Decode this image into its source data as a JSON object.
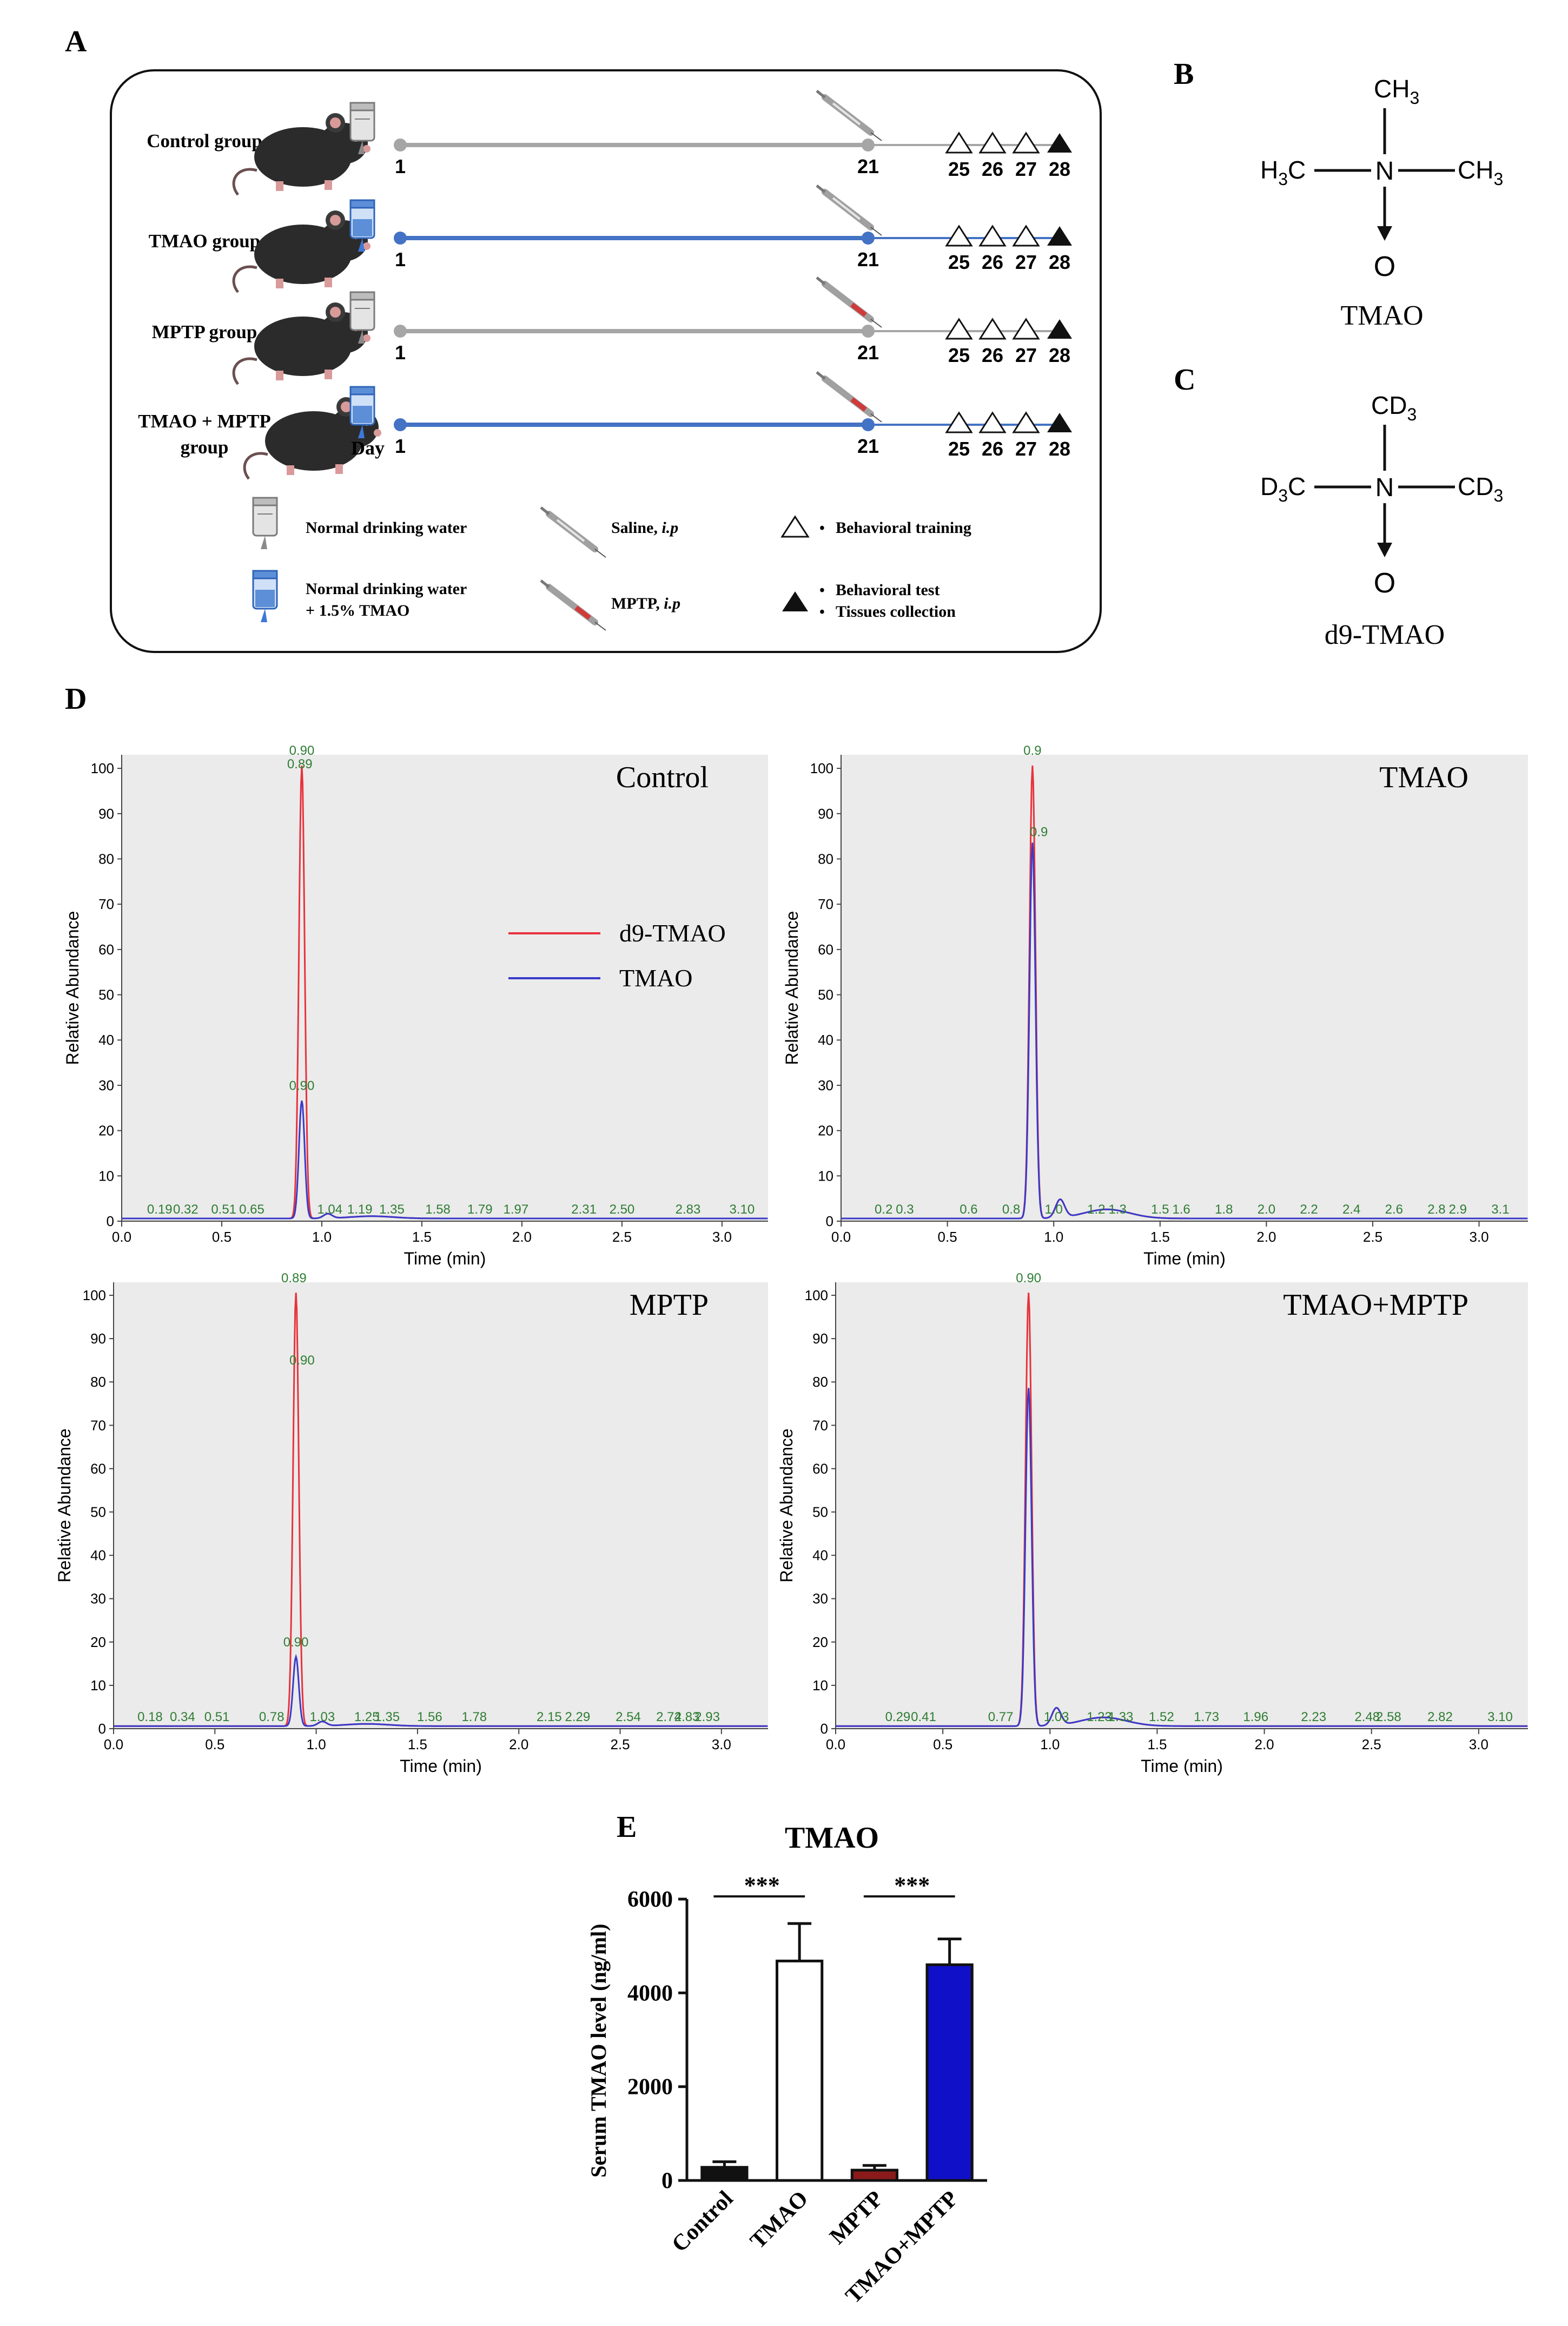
{
  "panel_labels": {
    "a": "A",
    "b": "B",
    "c": "C",
    "d": "D",
    "e": "E"
  },
  "schematic": {
    "groups": [
      {
        "name": "Control group",
        "tmao_water": false,
        "mptp": false
      },
      {
        "name": "TMAO group",
        "tmao_water": true,
        "mptp": false
      },
      {
        "name": "MPTP group",
        "tmao_water": false,
        "mptp": true
      },
      {
        "name_line1": "TMAO + MPTP",
        "name_line2": "group",
        "tmao_water": true,
        "mptp": true
      }
    ],
    "day_start": "1",
    "day_injection": "21",
    "days_training": [
      "25",
      "26",
      "27"
    ],
    "day_test": "28",
    "day_label": "Day",
    "legend": {
      "normal_water": "Normal drinking water",
      "tmao_water_line1": "Normal drinking water",
      "tmao_water_line2": "+ 1.5% TMAO",
      "saline": "Saline, ",
      "saline_route": "i.p",
      "mptp": "MPTP, ",
      "mptp_route": "i.p",
      "training": "Behavioral training",
      "test": "Behavioral test",
      "tissues": "Tissues collection",
      "bullet": "•"
    },
    "colors": {
      "gray_line": "#a6a6a6",
      "blue_line": "#4472c4",
      "syringe_saline": "#b0b0b0",
      "syringe_mptp": "#d03a3a"
    }
  },
  "structures": {
    "tmao": {
      "methyl": "CH",
      "sub": "3",
      "n": "N",
      "o": "O",
      "name": "TMAO",
      "h3c_h": "H",
      "h3c_c": "C"
    },
    "d9": {
      "methyl": "CD",
      "sub": "3",
      "n": "N",
      "o": "O",
      "name": "d9-TMAO",
      "d3c_d": "D",
      "d3c_c": "C"
    }
  },
  "chromatograms": {
    "ylabel": "Relative Abundance",
    "xlabel": "Time (min)",
    "yticks": [
      "0",
      "10",
      "20",
      "30",
      "40",
      "50",
      "60",
      "70",
      "80",
      "90",
      "100"
    ],
    "xticks": [
      "0.0",
      "0.5",
      "1.0",
      "1.5",
      "2.0",
      "2.5",
      "3.0"
    ],
    "legend": {
      "d9": "d9-TMAO",
      "tmao": "TMAO"
    },
    "colors": {
      "d9": "#e8323c",
      "tmao": "#3a3aca",
      "annot": "#2e7d32",
      "bg": "#ebebeb"
    },
    "panels": [
      {
        "title": "Control",
        "d9_peak": 100,
        "tmao_peak": 26,
        "peak_labels": [
          {
            "t": 0.89,
            "y": 100,
            "text": "0.89"
          },
          {
            "t": 0.9,
            "y": 103,
            "text": "0.90"
          },
          {
            "t": 0.9,
            "y": 29,
            "text": "0.90"
          }
        ],
        "baseline_labels": [
          "0.19",
          "0.32",
          "0.51",
          "0.65",
          "1.04",
          "1.19",
          "1.35",
          "1.58",
          "1.79",
          "1.97",
          "2.31",
          "2.50",
          "2.83",
          "3.10"
        ],
        "baseline_times": [
          0.19,
          0.32,
          0.51,
          0.65,
          1.04,
          1.19,
          1.35,
          1.58,
          1.79,
          1.97,
          2.31,
          2.5,
          2.83,
          3.1
        ]
      },
      {
        "title": "TMAO",
        "d9_peak": 100,
        "tmao_peak": 83,
        "peak_labels": [
          {
            "t": 0.9,
            "y": 103,
            "text": "0.9"
          },
          {
            "t": 0.93,
            "y": 85,
            "text": "0.9"
          }
        ],
        "baseline_labels": [
          "0.2",
          "0.3",
          "0.6",
          "0.8",
          "1.0",
          "1.2",
          "1.3",
          "1.5",
          "1.6",
          "1.8",
          "2.0",
          "2.2",
          "2.4",
          "2.6",
          "2.8",
          "2.9",
          "3.1"
        ],
        "baseline_times": [
          0.2,
          0.3,
          0.6,
          0.8,
          1.0,
          1.2,
          1.3,
          1.5,
          1.6,
          1.8,
          2.0,
          2.2,
          2.4,
          2.6,
          2.8,
          2.9,
          3.1
        ]
      },
      {
        "title": "MPTP",
        "d9_peak": 100,
        "tmao_peak": 16,
        "peak_labels": [
          {
            "t": 0.89,
            "y": 103,
            "text": "0.89"
          },
          {
            "t": 0.93,
            "y": 84,
            "text": "0.90"
          },
          {
            "t": 0.9,
            "y": 19,
            "text": "0.90"
          }
        ],
        "baseline_labels": [
          "0.18",
          "0.34",
          "0.51",
          "0.78",
          "1.03",
          "1.25",
          "1.35",
          "1.56",
          "1.78",
          "2.15",
          "2.29",
          "2.54",
          "2.74",
          "2.83",
          "2.93"
        ],
        "baseline_times": [
          0.18,
          0.34,
          0.51,
          0.78,
          1.03,
          1.25,
          1.35,
          1.56,
          1.78,
          2.15,
          2.29,
          2.54,
          2.74,
          2.83,
          2.93
        ]
      },
      {
        "title": "TMAO+MPTP",
        "d9_peak": 100,
        "tmao_peak": 78,
        "peak_labels": [
          {
            "t": 0.9,
            "y": 103,
            "text": "0.90"
          }
        ],
        "baseline_labels": [
          "0.29",
          "0.41",
          "0.77",
          "1.03",
          "1.23",
          "1.33",
          "1.52",
          "1.73",
          "1.96",
          "2.23",
          "2.48",
          "2.58",
          "2.82",
          "3.10"
        ],
        "baseline_times": [
          0.29,
          0.41,
          0.77,
          1.03,
          1.23,
          1.33,
          1.52,
          1.73,
          1.96,
          2.23,
          2.48,
          2.58,
          2.82,
          3.1
        ]
      }
    ]
  },
  "chart_data": {
    "type": "bar",
    "title": "TMAO",
    "ylabel": "Serum TMAO level (ng/ml)",
    "xlabel": "",
    "categories": [
      "Control",
      "TMAO",
      "MPTP",
      "TMAO+MPTP"
    ],
    "values": [
      280,
      4680,
      220,
      4600
    ],
    "errors": [
      120,
      800,
      100,
      550
    ],
    "colors": [
      "#111111",
      "#ffffff",
      "#8b1a1a",
      "#1010c8"
    ],
    "ylim": [
      0,
      6000
    ],
    "yticks": [
      "0",
      "2000",
      "4000",
      "6000"
    ],
    "significance": [
      {
        "from": 0,
        "to": 1,
        "label": "***"
      },
      {
        "from": 2,
        "to": 3,
        "label": "***"
      }
    ]
  }
}
